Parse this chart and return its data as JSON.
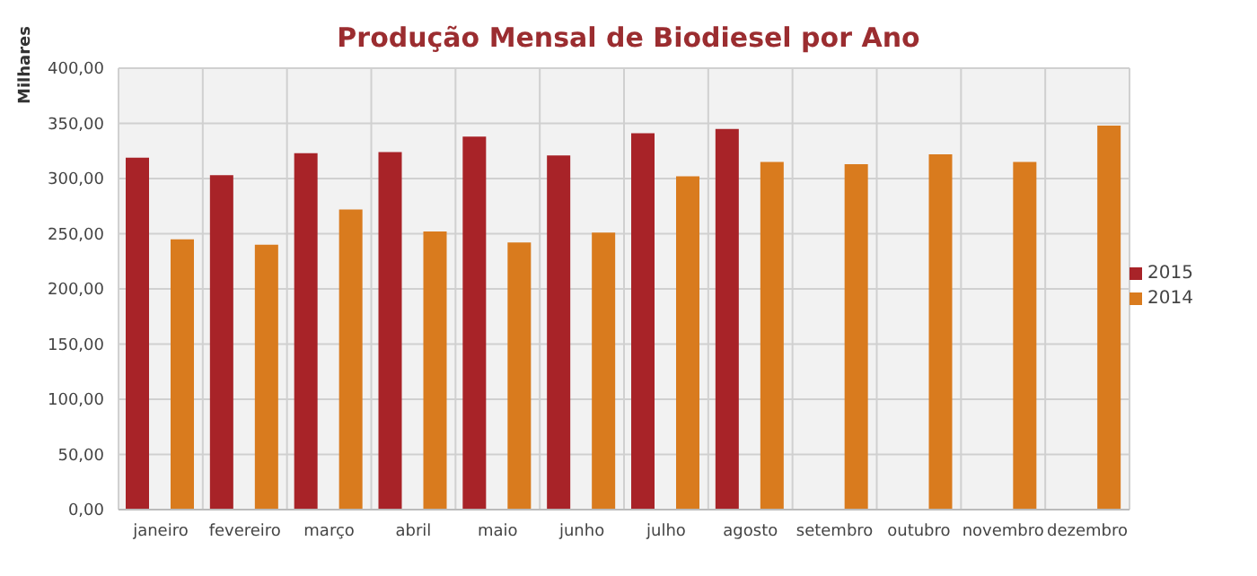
{
  "chart_data": {
    "type": "bar",
    "title": "Produção Mensal de Biodiesel por Ano",
    "ylabel": "Milhares",
    "categories": [
      "janeiro",
      "fevereiro",
      "março",
      "abril",
      "maio",
      "junho",
      "julho",
      "agosto",
      "setembro",
      "outubro",
      "novembro",
      "dezembro"
    ],
    "series": [
      {
        "name": "2015",
        "color": "#a82328",
        "values": [
          319,
          303,
          323,
          324,
          338,
          321,
          341,
          345,
          null,
          null,
          null,
          null
        ]
      },
      {
        "name": "2014",
        "color": "#d97b1e",
        "values": [
          245,
          240,
          272,
          252,
          242,
          251,
          302,
          315,
          313,
          322,
          315,
          348
        ]
      }
    ],
    "ylim": [
      0,
      400
    ],
    "yticks": [
      {
        "value": 0,
        "label": "0,00"
      },
      {
        "value": 50,
        "label": "50,00"
      },
      {
        "value": 100,
        "label": "100,00"
      },
      {
        "value": 150,
        "label": "150,00"
      },
      {
        "value": 200,
        "label": "200,00"
      },
      {
        "value": 250,
        "label": "250,00"
      },
      {
        "value": 300,
        "label": "300,00"
      },
      {
        "value": 350,
        "label": "350,00"
      },
      {
        "value": 400,
        "label": "400,00"
      }
    ],
    "grid": true,
    "legend": "right"
  }
}
